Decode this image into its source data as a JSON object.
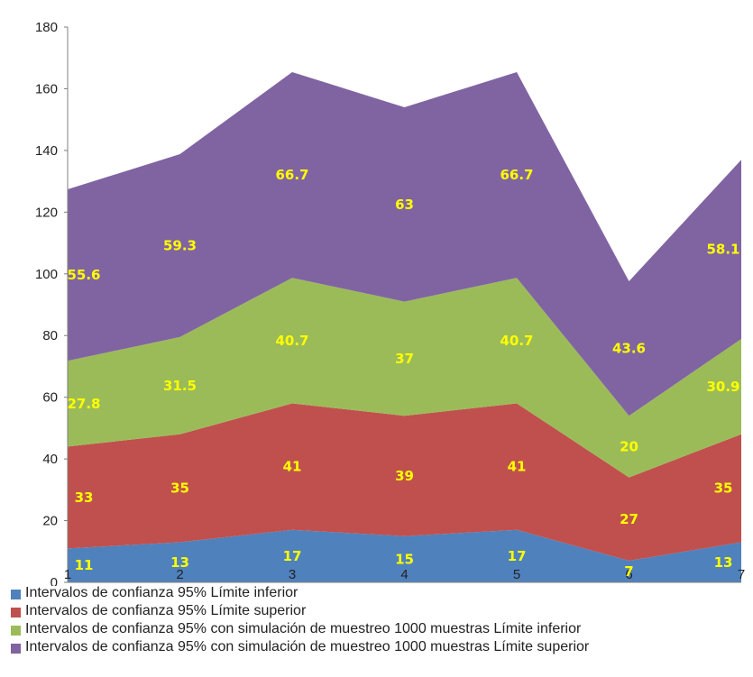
{
  "colors": {
    "series": [
      "#4f81bd",
      "#c0504d",
      "#9bbb59",
      "#8064a2"
    ],
    "data_label": "#ffff00",
    "axis": "#7f7f7f"
  },
  "chart_data": {
    "type": "area",
    "stacked": true,
    "title": "",
    "xlabel": "",
    "ylabel": "",
    "x": [
      "1",
      "2",
      "3",
      "4",
      "5",
      "6",
      "7"
    ],
    "ylim": [
      0,
      180
    ],
    "yticks": [
      "0",
      "20",
      "40",
      "60",
      "80",
      "100",
      "120",
      "140",
      "160",
      "180"
    ],
    "grid": false,
    "legend_position": "bottom",
    "series": [
      {
        "name": "Intervalos de confianza 95% Límite inferior",
        "values": [
          11,
          13,
          17,
          15,
          17,
          7,
          13
        ],
        "labels": [
          "11",
          "13",
          "17",
          "15",
          "17",
          "7",
          "13"
        ]
      },
      {
        "name": "Intervalos de confianza 95% Límite superior",
        "values": [
          33,
          35,
          41,
          39,
          41,
          27,
          35
        ],
        "labels": [
          "33",
          "35",
          "41",
          "39",
          "41",
          "27",
          "35"
        ]
      },
      {
        "name": "Intervalos de confianza 95% con simulación de muestreo 1000 muestras Límite inferior",
        "values": [
          27.8,
          31.5,
          40.7,
          37,
          40.7,
          20,
          30.9
        ],
        "labels": [
          "27.8",
          "31.5",
          "40.7",
          "37",
          "40.7",
          "20",
          "30.9"
        ]
      },
      {
        "name": "Intervalos de confianza 95% con simulación de muestreo 1000 muestras Límite superior",
        "values": [
          55.6,
          59.3,
          66.7,
          63,
          66.7,
          43.6,
          58.1
        ],
        "labels": [
          "55.6",
          "59.3",
          "66.7",
          "63",
          "66.7",
          "43.6",
          "58.1"
        ]
      }
    ]
  }
}
